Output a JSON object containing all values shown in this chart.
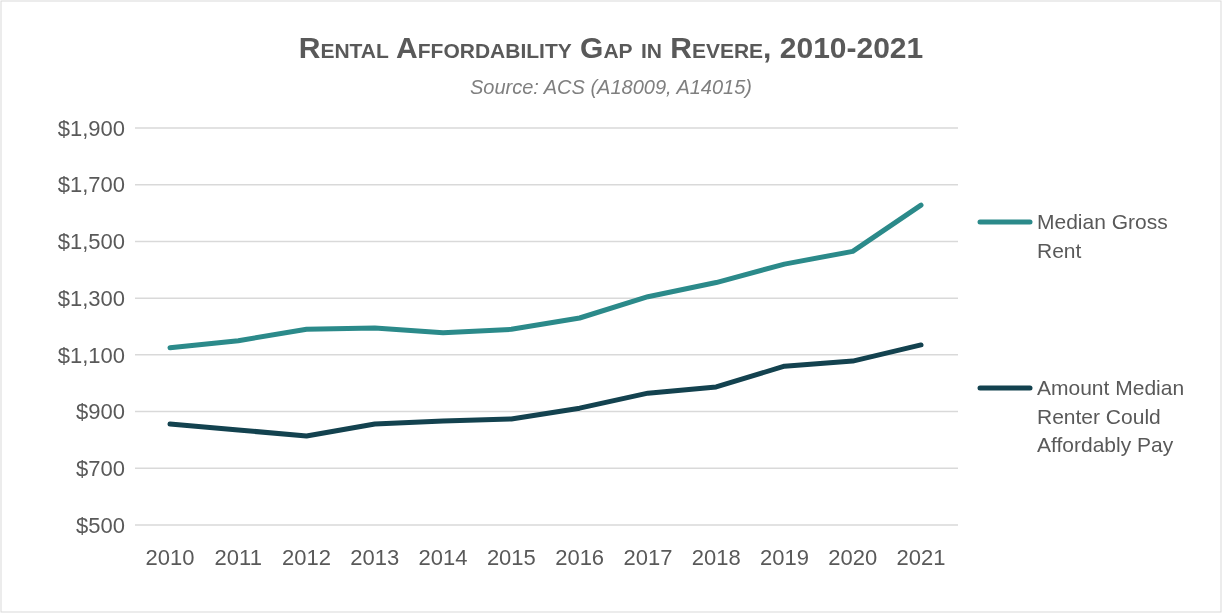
{
  "chart_data": {
    "type": "line",
    "title": "Rental Affordability Gap in Revere, 2010-2021",
    "subtitle": "Source: ACS (A18009, A14015)",
    "categories": [
      "2010",
      "2011",
      "2012",
      "2013",
      "2014",
      "2015",
      "2016",
      "2017",
      "2018",
      "2019",
      "2020",
      "2021"
    ],
    "series": [
      {
        "name": "Median Gross Rent",
        "color": "#2b8a8a",
        "values": [
          1125,
          1150,
          1190,
          1195,
          1178,
          1190,
          1230,
          1305,
          1355,
          1420,
          1465,
          1628
        ]
      },
      {
        "name": "Amount Median Renter Could Affordably Pay",
        "color": "#13424f",
        "values": [
          856,
          835,
          814,
          856,
          867,
          874,
          912,
          965,
          987,
          1060,
          1078,
          1135
        ]
      }
    ],
    "ylim": [
      500,
      1900
    ],
    "yticks": [
      {
        "value": 500,
        "label": "$500"
      },
      {
        "value": 700,
        "label": "$700"
      },
      {
        "value": 900,
        "label": "$900"
      },
      {
        "value": 1100,
        "label": "$1,100"
      },
      {
        "value": 1300,
        "label": "$1,300"
      },
      {
        "value": 1500,
        "label": "$1,500"
      },
      {
        "value": 1700,
        "label": "$1,700"
      },
      {
        "value": 1900,
        "label": "$1,900"
      }
    ],
    "grid": "y",
    "legend": "right",
    "marker": "none",
    "line_style": "solid"
  }
}
